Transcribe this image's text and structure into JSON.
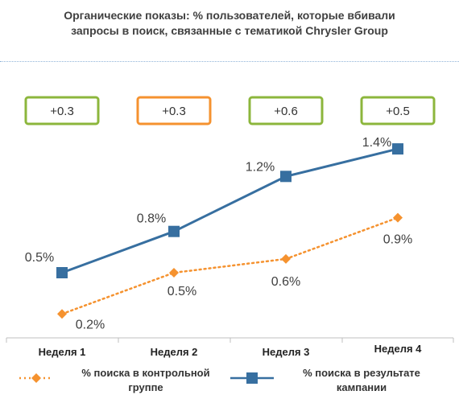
{
  "chart_data": {
    "type": "line",
    "title": "Органические показы: % пользователей, которые вбивали запросы в поиск, связанные с тематикой Chrysler Group",
    "categories": [
      "Неделя 1",
      "Неделя 2",
      "Неделя 3",
      "Неделя 4"
    ],
    "series": [
      {
        "name": "% поиска в контрольной группе",
        "values": [
          0.2,
          0.5,
          0.6,
          0.9
        ],
        "labels": [
          "0.2%",
          "0.5%",
          "0.6%",
          "0.9%"
        ],
        "color": "#f5922f",
        "style": "dotted",
        "marker": "diamond"
      },
      {
        "name": "% поиска в результате кампании",
        "values": [
          0.5,
          0.8,
          1.2,
          1.4
        ],
        "labels": [
          "0.5%",
          "0.8%",
          "1.2%",
          "1.4%"
        ],
        "color": "#376fa0",
        "style": "solid",
        "marker": "square"
      }
    ],
    "differences": [
      {
        "label": "+0.3",
        "border_color": "#8cb63c"
      },
      {
        "label": "+0.3",
        "border_color": "#f5922f"
      },
      {
        "label": "+0.6",
        "border_color": "#8cb63c"
      },
      {
        "label": "+0.5",
        "border_color": "#8cb63c"
      }
    ],
    "ylim": [
      0,
      1.6
    ],
    "grid": false,
    "legend_position": "bottom"
  }
}
